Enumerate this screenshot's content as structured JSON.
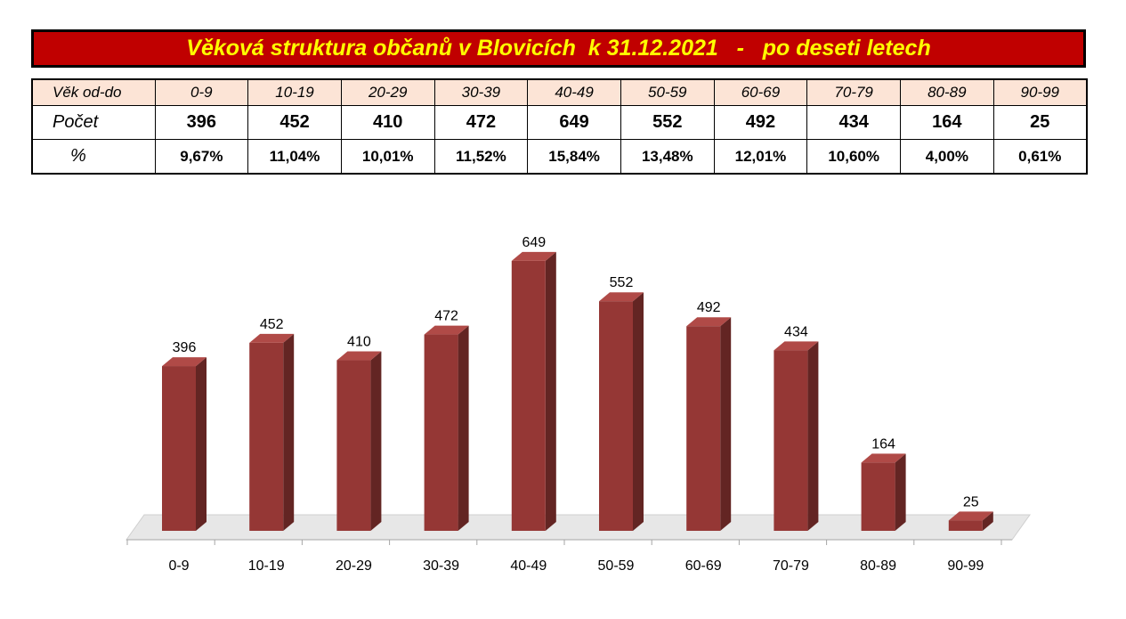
{
  "title": "Věková struktura občanů v Blovicích  k 31.12.2021   -   po deseti letech",
  "table": {
    "row_labels": {
      "age": "Věk od-do",
      "count": "Počet",
      "percent": "%"
    },
    "ages": [
      "0-9",
      "10-19",
      "20-29",
      "30-39",
      "40-49",
      "50-59",
      "60-69",
      "70-79",
      "80-89",
      "90-99"
    ],
    "counts": [
      "396",
      "452",
      "410",
      "472",
      "649",
      "552",
      "492",
      "434",
      "164",
      "25"
    ],
    "percents": [
      "9,67%",
      "11,04%",
      "10,01%",
      "11,52%",
      "15,84%",
      "13,48%",
      "12,01%",
      "10,60%",
      "4,00%",
      "0,61%"
    ]
  },
  "colors": {
    "title_background": "#c00000",
    "title_text": "#ffff00",
    "header_background": "#fce4d6",
    "bar_front": "#953735",
    "bar_side": "#632523",
    "bar_top": "#b04a47"
  },
  "chart_data": {
    "type": "bar",
    "style": "3d-column",
    "categories": [
      "0-9",
      "10-19",
      "20-29",
      "30-39",
      "40-49",
      "50-59",
      "60-69",
      "70-79",
      "80-89",
      "90-99"
    ],
    "values": [
      396,
      452,
      410,
      472,
      649,
      552,
      492,
      434,
      164,
      25
    ],
    "data_labels": [
      "396",
      "452",
      "410",
      "472",
      "649",
      "552",
      "492",
      "434",
      "164",
      "25"
    ],
    "title": "",
    "xlabel": "",
    "ylabel": "",
    "ylim": [
      0,
      700
    ],
    "grid": false,
    "legend": "none"
  }
}
